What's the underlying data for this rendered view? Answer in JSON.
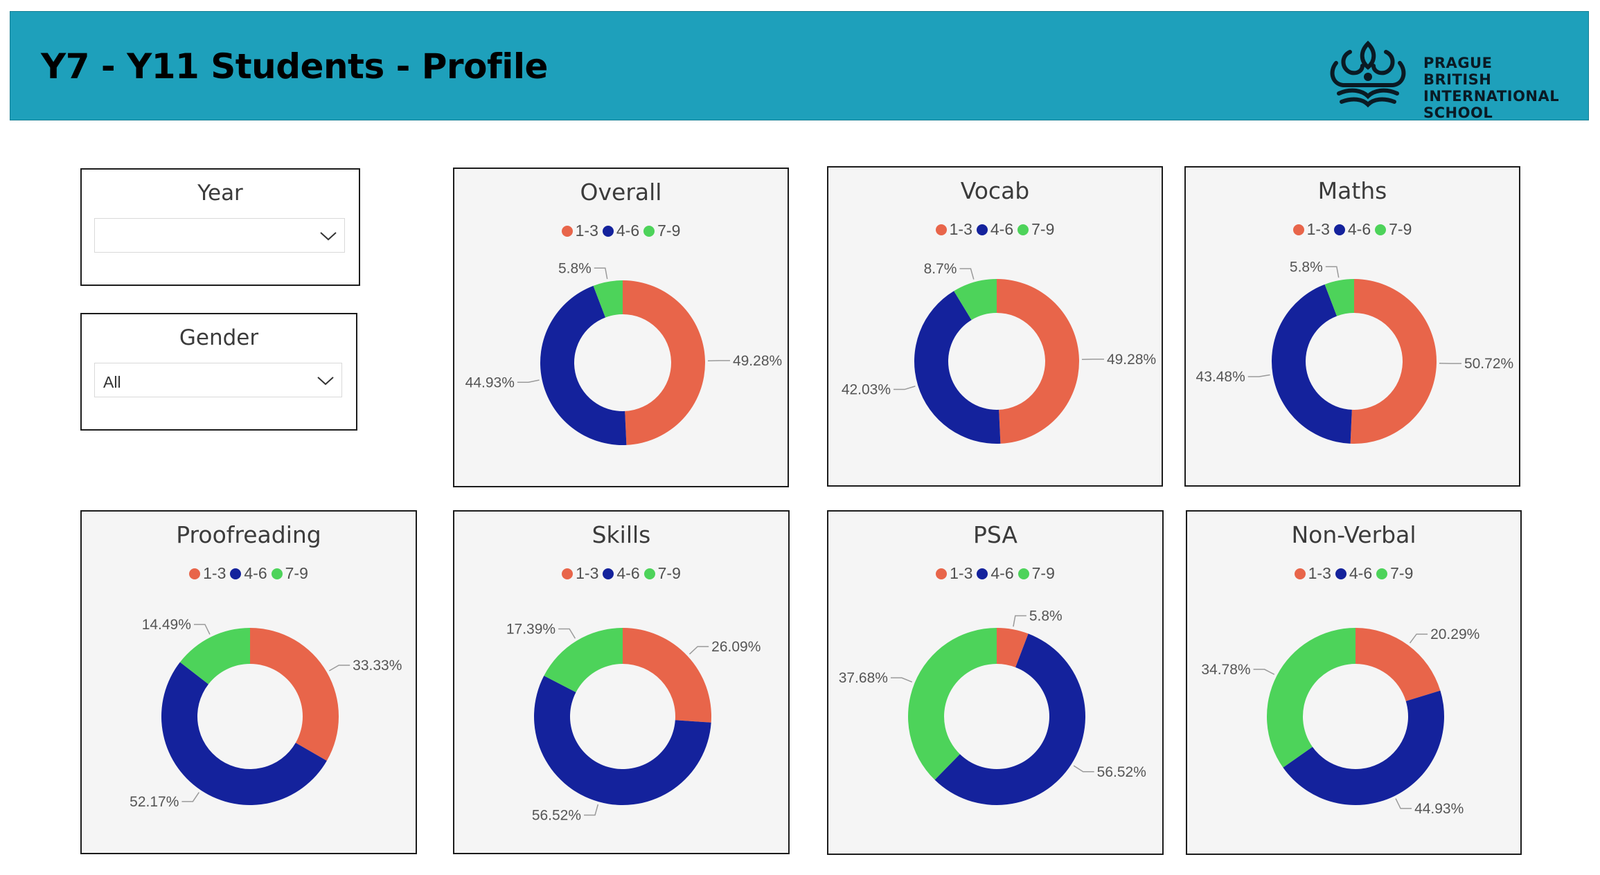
{
  "header": {
    "title": "Y7 - Y11 Students - Profile"
  },
  "logo": {
    "line1": "PRAGUE BRITISH",
    "line2": "INTERNATIONAL",
    "line3": "SCHOOL",
    "icon": "crown-book-emblem-icon"
  },
  "filters": {
    "year": {
      "label": "Year",
      "value": ""
    },
    "gender": {
      "label": "Gender",
      "value": "All"
    }
  },
  "legend": [
    "1-3",
    "4-6",
    "7-9"
  ],
  "colors": {
    "band_1_3": "#e8654a",
    "band_4_6": "#14229c",
    "band_7_9": "#4dd35a",
    "header_bg": "#1ea0bb"
  },
  "chart_data": [
    {
      "type": "pie",
      "title": "Overall",
      "categories": [
        "1-3",
        "4-6",
        "7-9"
      ],
      "values": [
        49.28,
        44.93,
        5.8
      ],
      "labels": [
        "49.28%",
        "44.93%",
        "5.8%"
      ]
    },
    {
      "type": "pie",
      "title": "Vocab",
      "categories": [
        "1-3",
        "4-6",
        "7-9"
      ],
      "values": [
        49.28,
        42.03,
        8.7
      ],
      "labels": [
        "49.28%",
        "42.03%",
        "8.7%"
      ]
    },
    {
      "type": "pie",
      "title": "Maths",
      "categories": [
        "1-3",
        "4-6",
        "7-9"
      ],
      "values": [
        50.72,
        43.48,
        5.8
      ],
      "labels": [
        "50.72%",
        "43.48%",
        "5.8%"
      ]
    },
    {
      "type": "pie",
      "title": "Proofreading",
      "categories": [
        "1-3",
        "4-6",
        "7-9"
      ],
      "values": [
        33.33,
        52.17,
        14.49
      ],
      "labels": [
        "33.33%",
        "52.17%",
        "14.49%"
      ]
    },
    {
      "type": "pie",
      "title": "Skills",
      "categories": [
        "1-3",
        "4-6",
        "7-9"
      ],
      "values": [
        26.09,
        56.52,
        17.39
      ],
      "labels": [
        "26.09%",
        "56.52%",
        "17.39%"
      ]
    },
    {
      "type": "pie",
      "title": "PSA",
      "categories": [
        "1-3",
        "4-6",
        "7-9"
      ],
      "values": [
        5.8,
        56.52,
        37.68
      ],
      "labels": [
        "5.8%",
        "56.52%",
        "37.68%"
      ]
    },
    {
      "type": "pie",
      "title": "Non-Verbal",
      "categories": [
        "1-3",
        "4-6",
        "7-9"
      ],
      "values": [
        20.29,
        44.93,
        34.78
      ],
      "labels": [
        "20.29%",
        "44.93%",
        "34.78%"
      ]
    }
  ]
}
